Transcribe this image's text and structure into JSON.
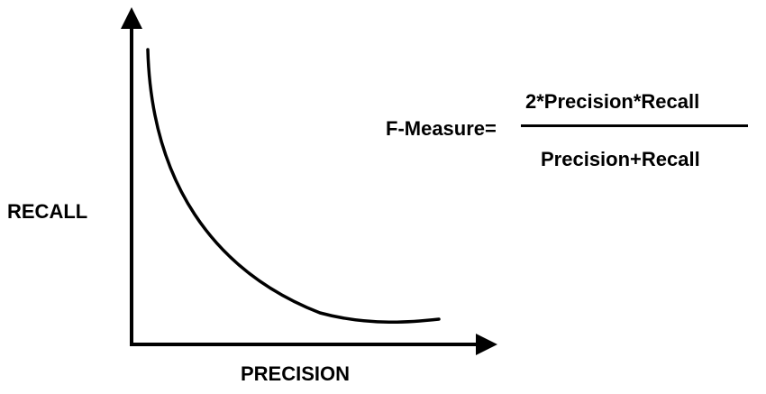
{
  "axes": {
    "y_label": "RECALL",
    "x_label": "PRECISION"
  },
  "formula": {
    "lhs": "F-Measure=",
    "numerator": "2*Precision*Recall",
    "denominator": "Precision+Recall"
  },
  "colors": {
    "ink": "#000000",
    "background": "#ffffff"
  }
}
